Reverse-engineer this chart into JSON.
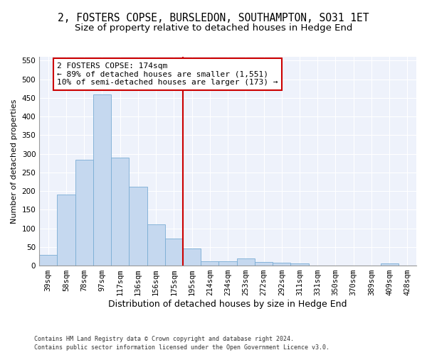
{
  "title1": "2, FOSTERS COPSE, BURSLEDON, SOUTHAMPTON, SO31 1ET",
  "title2": "Size of property relative to detached houses in Hedge End",
  "xlabel": "Distribution of detached houses by size in Hedge End",
  "ylabel": "Number of detached properties",
  "categories": [
    "39sqm",
    "58sqm",
    "78sqm",
    "97sqm",
    "117sqm",
    "136sqm",
    "156sqm",
    "175sqm",
    "195sqm",
    "214sqm",
    "234sqm",
    "253sqm",
    "272sqm",
    "292sqm",
    "311sqm",
    "331sqm",
    "350sqm",
    "370sqm",
    "389sqm",
    "409sqm",
    "428sqm"
  ],
  "values": [
    28,
    191,
    284,
    459,
    290,
    212,
    110,
    73,
    45,
    12,
    12,
    20,
    10,
    7,
    5,
    0,
    0,
    0,
    0,
    5,
    0
  ],
  "bar_color": "#c5d8ef",
  "bar_edge_color": "#7aadd4",
  "vline_color": "#cc0000",
  "vline_x_index": 7,
  "annotation_text": "2 FOSTERS COPSE: 174sqm\n← 89% of detached houses are smaller (1,551)\n10% of semi-detached houses are larger (173) →",
  "annotation_box_color": "white",
  "annotation_box_edge_color": "#cc0000",
  "ylim": [
    0,
    560
  ],
  "yticks": [
    0,
    50,
    100,
    150,
    200,
    250,
    300,
    350,
    400,
    450,
    500,
    550
  ],
  "footer1": "Contains HM Land Registry data © Crown copyright and database right 2024.",
  "footer2": "Contains public sector information licensed under the Open Government Licence v3.0.",
  "background_color": "#eef2fb",
  "grid_color": "#ffffff",
  "title1_fontsize": 10.5,
  "title2_fontsize": 9.5,
  "xlabel_fontsize": 9,
  "ylabel_fontsize": 8,
  "tick_fontsize": 7.5,
  "annotation_fontsize": 8,
  "footer_fontsize": 6
}
